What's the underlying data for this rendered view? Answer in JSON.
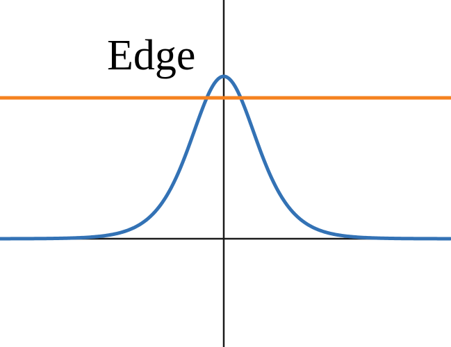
{
  "figure": {
    "label": "Edge",
    "curve_type": "bell-shaped peak",
    "colors": {
      "axes": "#1a1a1a",
      "curve": "#3372b5",
      "threshold_line": "#f58220",
      "background": "#ffffff"
    }
  }
}
